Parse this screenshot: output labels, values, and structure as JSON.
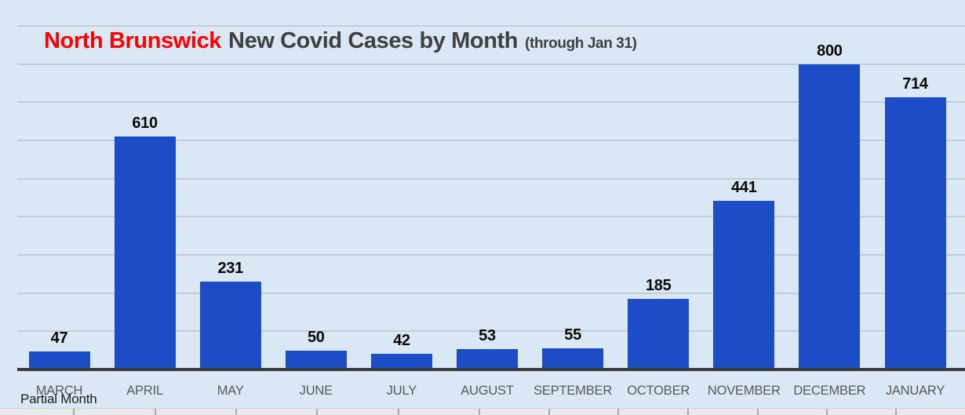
{
  "title": {
    "highlight": "North Brunswick",
    "main": "New Covid Cases by Month",
    "note": "(through Jan 31)"
  },
  "chart_data": {
    "type": "bar",
    "title": "North Brunswick New Covid Cases by Month (through Jan 31)",
    "categories": [
      "MARCH",
      "APRIL",
      "MAY",
      "JUNE",
      "JULY",
      "AUGUST",
      "SEPTEMBER",
      "OCTOBER",
      "NOVEMBER",
      "DECEMBER",
      "JANUARY"
    ],
    "values": [
      47,
      610,
      231,
      50,
      42,
      53,
      55,
      185,
      441,
      800,
      714
    ],
    "data_labels": [
      47,
      610,
      231,
      50,
      42,
      53,
      55,
      185,
      441,
      800,
      714
    ],
    "annotation": "Partial Month",
    "annotation_target": "MARCH",
    "xlabel": "",
    "ylabel": "",
    "ylim": [
      0,
      900
    ],
    "gridline_interval": 100,
    "grid": true,
    "legend": false,
    "y_tick_labels_visible": false,
    "colors": {
      "bar": "#1C4DC6",
      "background": "#D9E8F4",
      "gridline": "#C2CCD4",
      "axis_line": "#3B3B3B",
      "title_highlight": "#FE0000",
      "title_text": "#404040",
      "category_label": "#595959",
      "value_label": "#0A0A0A"
    }
  }
}
